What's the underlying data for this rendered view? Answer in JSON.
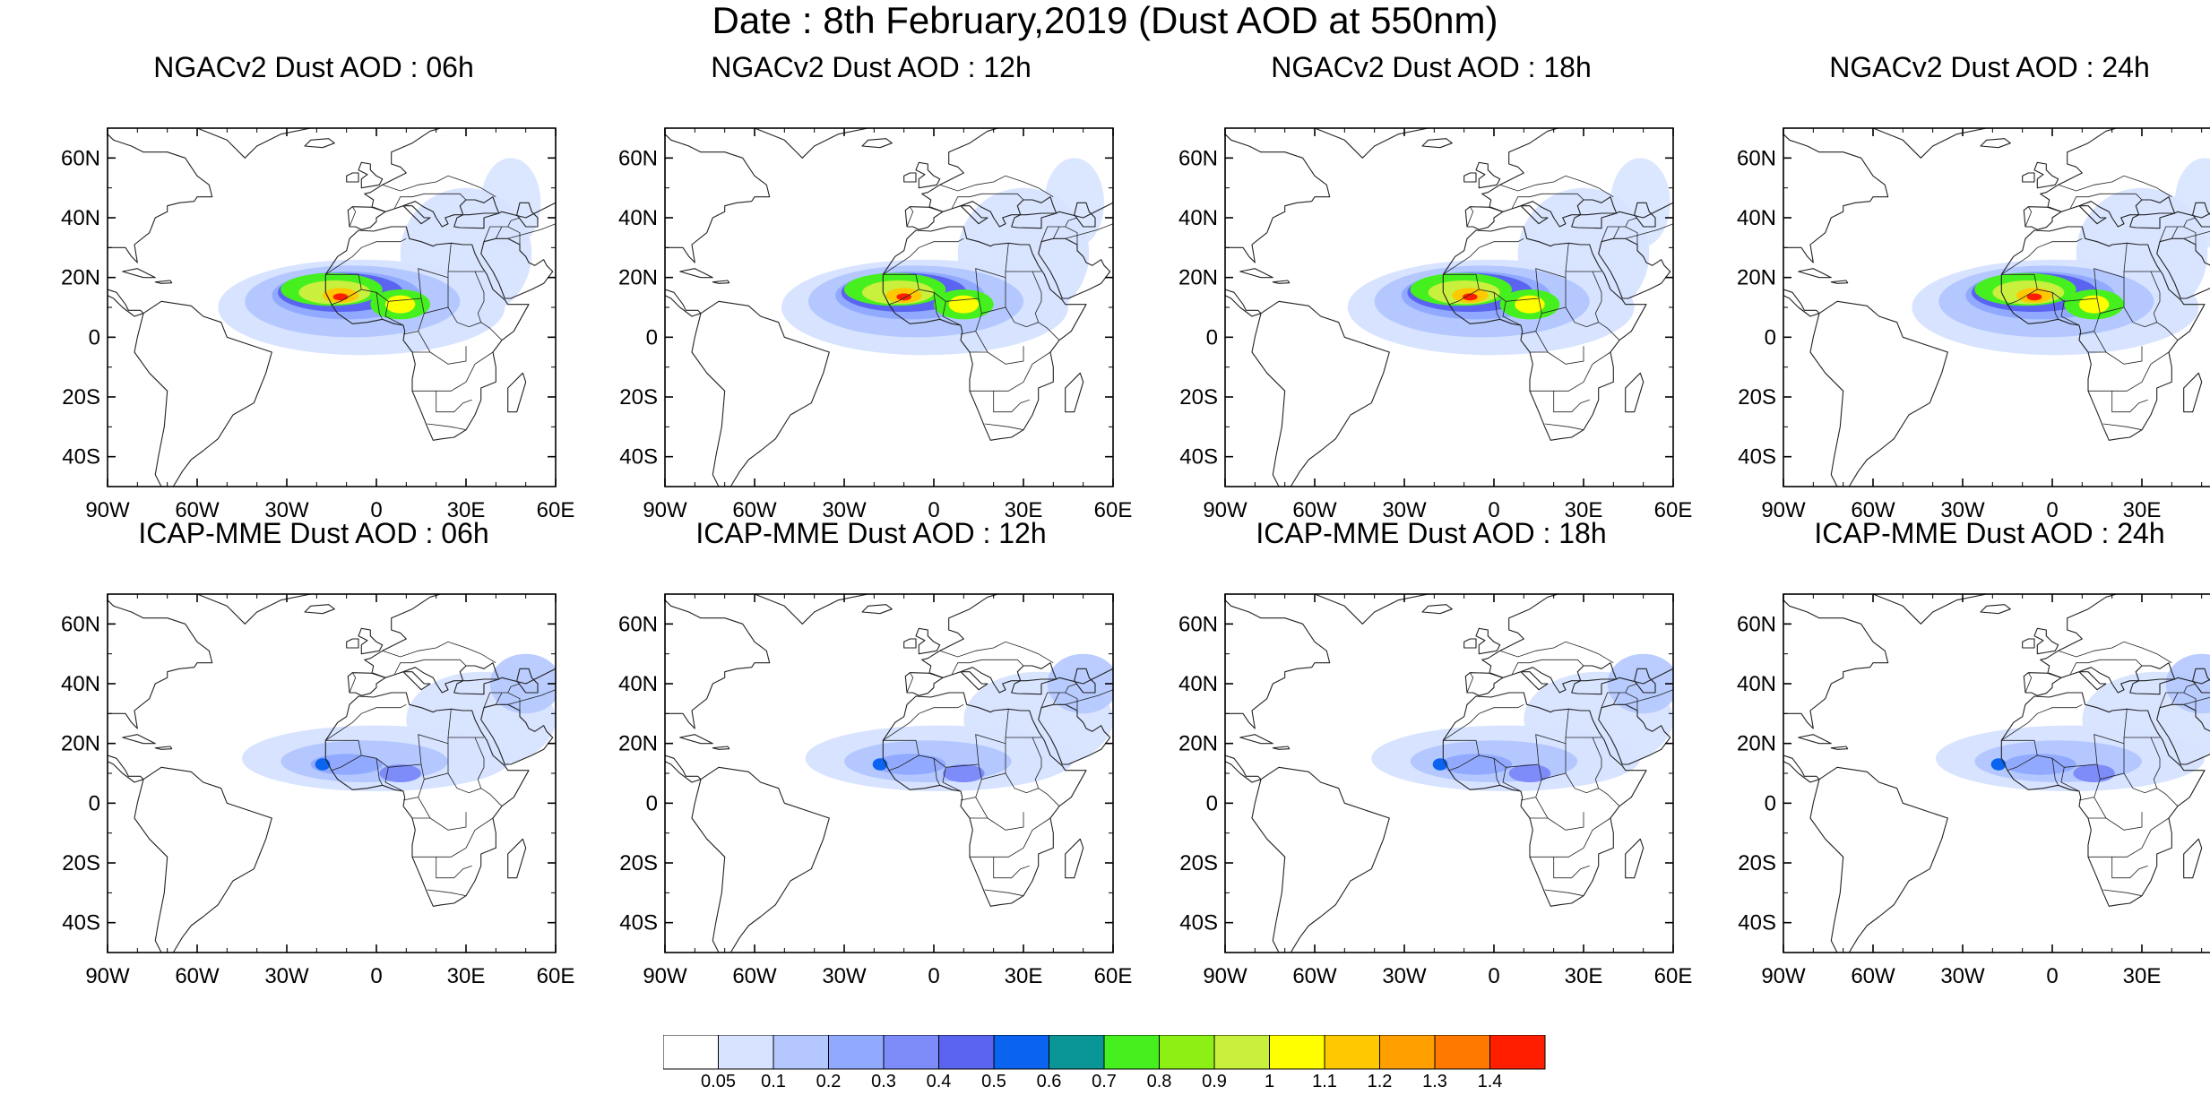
{
  "title": "Date : 8th February,2019 (Dust AOD at 550nm)",
  "lat_labels": [
    "60N",
    "40N",
    "20N",
    "0",
    "20S",
    "40S"
  ],
  "lat_values": [
    60,
    40,
    20,
    0,
    -20,
    -40
  ],
  "lon_labels": [
    "90W",
    "60W",
    "30W",
    "0",
    "30E",
    "60E"
  ],
  "lon_values": [
    -90,
    -60,
    -30,
    0,
    30,
    60
  ],
  "map_extent": {
    "lon_min": -90,
    "lon_max": 60,
    "lat_min": -50,
    "lat_max": 70
  },
  "panels": [
    {
      "title": "NGACv2 Dust AOD : 06h",
      "model": "NGACv2",
      "hour": 6
    },
    {
      "title": "NGACv2 Dust AOD : 12h",
      "model": "NGACv2",
      "hour": 12
    },
    {
      "title": "NGACv2 Dust AOD : 18h",
      "model": "NGACv2",
      "hour": 18
    },
    {
      "title": "NGACv2 Dust AOD : 24h",
      "model": "NGACv2",
      "hour": 24
    },
    {
      "title": "ICAP-MME Dust AOD : 06h",
      "model": "ICAP-MME",
      "hour": 6
    },
    {
      "title": "ICAP-MME Dust AOD : 12h",
      "model": "ICAP-MME",
      "hour": 12
    },
    {
      "title": "ICAP-MME Dust AOD : 18h",
      "model": "ICAP-MME",
      "hour": 18
    },
    {
      "title": "ICAP-MME Dust AOD : 24h",
      "model": "ICAP-MME",
      "hour": 24
    }
  ],
  "colorbar": {
    "labels": [
      "0.05",
      "0.1",
      "0.2",
      "0.3",
      "0.4",
      "0.5",
      "0.6",
      "0.7",
      "0.8",
      "0.9",
      "1",
      "1.1",
      "1.2",
      "1.3",
      "1.4"
    ],
    "colors": [
      "#ffffff",
      "#d7e3ff",
      "#b4c8ff",
      "#91aaff",
      "#7d8cf8",
      "#5a64f0",
      "#0a64f0",
      "#0a9696",
      "#46f01e",
      "#8cf014",
      "#c8f03c",
      "#ffff00",
      "#ffc800",
      "#ffa000",
      "#ff7800",
      "#ff1e00"
    ]
  },
  "coast_color": "#222222"
}
